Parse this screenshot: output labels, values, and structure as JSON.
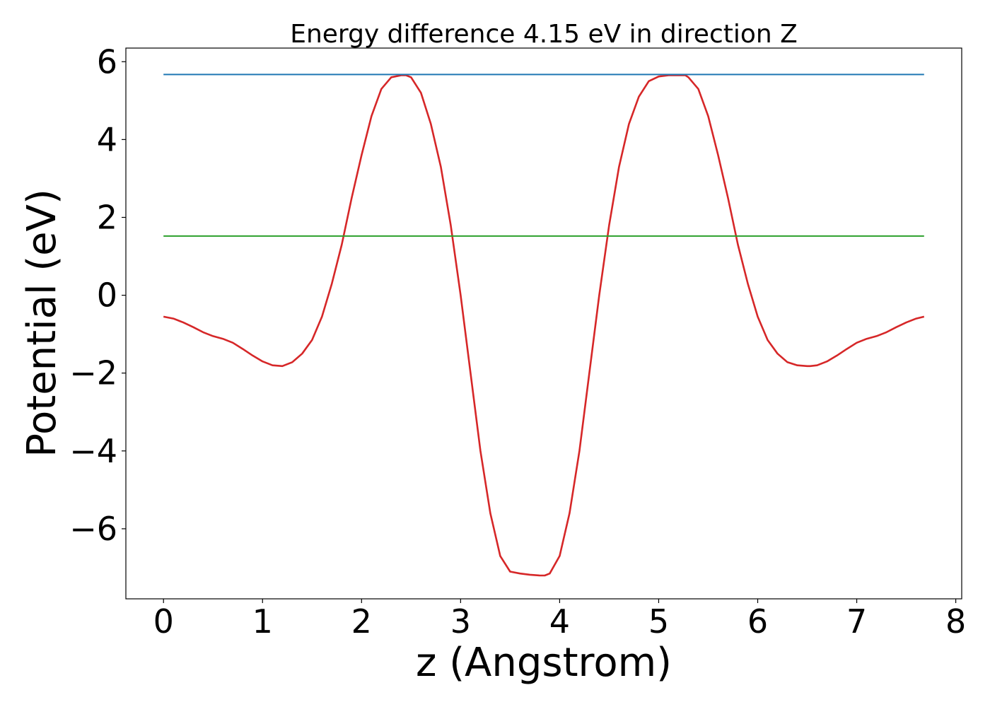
{
  "chart_data": {
    "type": "line",
    "title": "Energy difference 4.15 eV in direction Z",
    "xlabel": "z (Angstrom)",
    "ylabel": "Potential (eV)",
    "xlim": [
      -0.38,
      8.06
    ],
    "ylim": [
      -7.8,
      6.35
    ],
    "xticks": [
      0,
      1,
      2,
      3,
      4,
      5,
      6,
      7,
      8
    ],
    "xtick_labels": [
      "0",
      "1",
      "2",
      "3",
      "4",
      "5",
      "6",
      "7",
      "8"
    ],
    "yticks": [
      6,
      4,
      2,
      0,
      -2,
      -4,
      -6
    ],
    "ytick_labels": [
      "6",
      "4",
      "2",
      "0",
      "−2",
      "−4",
      "−6"
    ],
    "grid": false,
    "legend": "none",
    "series": [
      {
        "color": "#d62728",
        "x": [
          0.0,
          0.1,
          0.2,
          0.3,
          0.4,
          0.5,
          0.6,
          0.7,
          0.8,
          0.9,
          1.0,
          1.1,
          1.2,
          1.3,
          1.4,
          1.5,
          1.6,
          1.7,
          1.8,
          1.9,
          2.0,
          2.1,
          2.2,
          2.3,
          2.4,
          2.45,
          2.5,
          2.6,
          2.7,
          2.8,
          2.9,
          3.0,
          3.1,
          3.2,
          3.3,
          3.4,
          3.5,
          3.6,
          3.7,
          3.8,
          3.85,
          3.9,
          4.0,
          4.1,
          4.2,
          4.3,
          4.4,
          4.5,
          4.6,
          4.7,
          4.8,
          4.9,
          5.0,
          5.1,
          5.2,
          5.27,
          5.3,
          5.4,
          5.5,
          5.6,
          5.7,
          5.8,
          5.9,
          6.0,
          6.1,
          6.2,
          6.3,
          6.4,
          6.5,
          6.53,
          6.6,
          6.7,
          6.8,
          6.9,
          7.0,
          7.1,
          7.2,
          7.3,
          7.4,
          7.5,
          7.6,
          7.68
        ],
        "y": [
          -0.55,
          -0.6,
          -0.7,
          -0.82,
          -0.95,
          -1.05,
          -1.12,
          -1.22,
          -1.38,
          -1.55,
          -1.7,
          -1.8,
          -1.82,
          -1.72,
          -1.5,
          -1.15,
          -0.55,
          0.3,
          1.3,
          2.5,
          3.6,
          4.6,
          5.3,
          5.6,
          5.65,
          5.65,
          5.6,
          5.2,
          4.4,
          3.3,
          1.8,
          0.0,
          -2.0,
          -4.0,
          -5.6,
          -6.7,
          -7.1,
          -7.15,
          -7.18,
          -7.2,
          -7.2,
          -7.15,
          -6.7,
          -5.6,
          -4.0,
          -2.0,
          0.0,
          1.8,
          3.3,
          4.4,
          5.1,
          5.5,
          5.62,
          5.65,
          5.65,
          5.65,
          5.6,
          5.3,
          4.6,
          3.6,
          2.5,
          1.3,
          0.3,
          -0.55,
          -1.15,
          -1.5,
          -1.72,
          -1.8,
          -1.82,
          -1.82,
          -1.8,
          -1.7,
          -1.55,
          -1.38,
          -1.22,
          -1.12,
          -1.05,
          -0.95,
          -0.82,
          -0.7,
          -0.6,
          -0.55
        ]
      },
      {
        "color": "#1f77b4",
        "x": [
          0.0,
          7.68
        ],
        "y": [
          5.67,
          5.67
        ]
      },
      {
        "color": "#2ca02c",
        "x": [
          0.0,
          7.68
        ],
        "y": [
          1.52,
          1.52
        ]
      }
    ]
  }
}
